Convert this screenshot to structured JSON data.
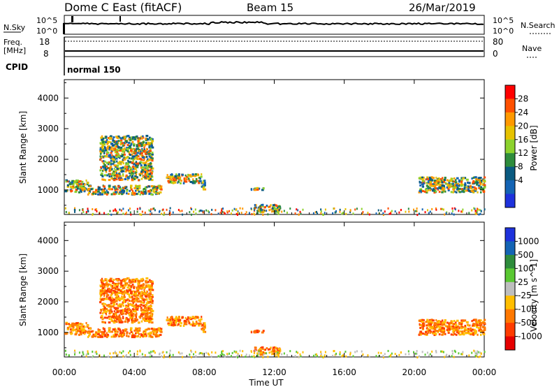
{
  "header": {
    "station": "Dome C East (fitACF)",
    "beam": "Beam 15",
    "date": "26/Mar/2019"
  },
  "top_panels": {
    "nsky_label": "N.Sky",
    "nsky_ticks": [
      "10^5",
      "10^0"
    ],
    "nsearch_label": "N.Search",
    "nsearch_ticks": [
      "10^5",
      "10^0"
    ],
    "freq_label": "Freq.",
    "freq_unit": "[MHz]",
    "freq_ticks": [
      "18",
      "8"
    ],
    "nave_label": "Nave",
    "nave_ticks": [
      "80",
      "0"
    ],
    "cpid_label": "CPID",
    "cpid_value": "normal 150"
  },
  "chart_data": [
    {
      "type": "heatmap",
      "name": "power",
      "ylabel": "Slant Range [km]",
      "yticks": [
        1000,
        2000,
        3000,
        4000
      ],
      "ylim": [
        200,
        4600
      ],
      "xlim": [
        0,
        24
      ],
      "colorbar_label": "Power [dB]",
      "colorbar_ticks": [
        "28",
        "24",
        "20",
        "16",
        "12",
        "8",
        "4"
      ],
      "colorbar_colors": [
        "#ff0000",
        "#ff5000",
        "#ff9900",
        "#e6c200",
        "#8cd22d",
        "#2e8c3c",
        "#0a5a80",
        "#1464b4",
        "#1e32dc"
      ],
      "scatter_regions": [
        {
          "t": [
            0.0,
            1.3
          ],
          "r": [
            950,
            1350
          ]
        },
        {
          "t": [
            1.3,
            5.5
          ],
          "r": [
            880,
            1180
          ]
        },
        {
          "t": [
            2.0,
            5.0
          ],
          "r": [
            1350,
            2800
          ]
        },
        {
          "t": [
            5.8,
            7.8
          ],
          "r": [
            1250,
            1550
          ]
        },
        {
          "t": [
            7.8,
            8.1
          ],
          "r": [
            1050,
            1350
          ]
        },
        {
          "t": [
            10.6,
            11.4
          ],
          "r": [
            1000,
            1100
          ]
        },
        {
          "t": [
            10.8,
            12.3
          ],
          "r": [
            300,
            550
          ]
        },
        {
          "t": [
            20.2,
            24.0
          ],
          "r": [
            950,
            1450
          ]
        }
      ]
    },
    {
      "type": "heatmap",
      "name": "velocity",
      "ylabel": "Slant Range [km]",
      "yticks": [
        1000,
        2000,
        3000,
        4000
      ],
      "ylim": [
        200,
        4600
      ],
      "xlim": [
        0,
        24
      ],
      "xticks": [
        "00:00",
        "04:00",
        "08:00",
        "12:00",
        "16:00",
        "20:00",
        "00:00"
      ],
      "xlabel": "Time UT",
      "colorbar_label": "Velocity [m s^-1]",
      "colorbar_ticks": [
        "1000",
        "500",
        "100",
        "25",
        "-25",
        "-100",
        "-500",
        "-1000"
      ],
      "colorbar_colors": [
        "#1e32dc",
        "#1464b4",
        "#2e8c3c",
        "#5ac832",
        "#bebebe",
        "#ffbe00",
        "#ff7800",
        "#ff3c00",
        "#e60000"
      ]
    }
  ]
}
